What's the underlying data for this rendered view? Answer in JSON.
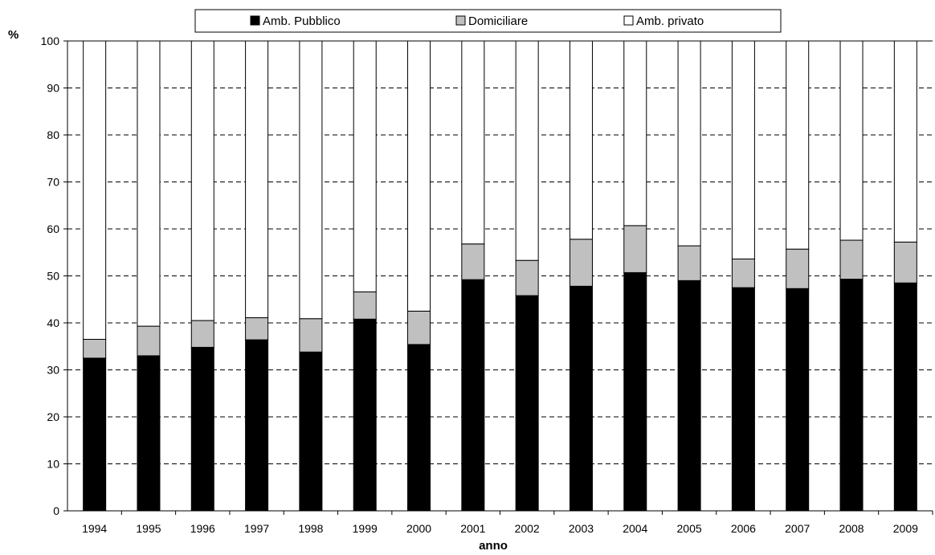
{
  "chart_data": {
    "type": "bar",
    "stacked": true,
    "title": "",
    "xlabel": "anno",
    "ylabel": "%",
    "ylim": [
      0,
      100
    ],
    "yticks": [
      0,
      10,
      20,
      30,
      40,
      50,
      60,
      70,
      80,
      90,
      100
    ],
    "grid": "dashed horizontal",
    "legend_position": "top",
    "categories": [
      "1994",
      "1995",
      "1996",
      "1997",
      "1998",
      "1999",
      "2000",
      "2001",
      "2002",
      "2003",
      "2004",
      "2005",
      "2006",
      "2007",
      "2008",
      "2009"
    ],
    "series": [
      {
        "name": "Amb. Pubblico",
        "color": "#000000",
        "values": [
          32.5,
          33.0,
          34.8,
          36.4,
          33.8,
          40.8,
          35.4,
          49.2,
          45.8,
          47.8,
          50.7,
          49.0,
          47.5,
          47.3,
          49.3,
          48.5
        ]
      },
      {
        "name": "Domiciliare",
        "color": "#c0c0c0",
        "values": [
          4.0,
          6.3,
          5.7,
          4.7,
          7.1,
          5.8,
          7.1,
          7.6,
          7.5,
          10.0,
          10.0,
          7.4,
          6.1,
          8.4,
          8.3,
          8.7
        ]
      },
      {
        "name": "Amb. privato",
        "color": "#ffffff",
        "values": [
          63.5,
          60.7,
          59.5,
          58.9,
          59.1,
          53.4,
          57.5,
          43.2,
          46.7,
          42.2,
          39.3,
          43.6,
          46.4,
          44.3,
          42.4,
          42.8
        ]
      }
    ]
  }
}
